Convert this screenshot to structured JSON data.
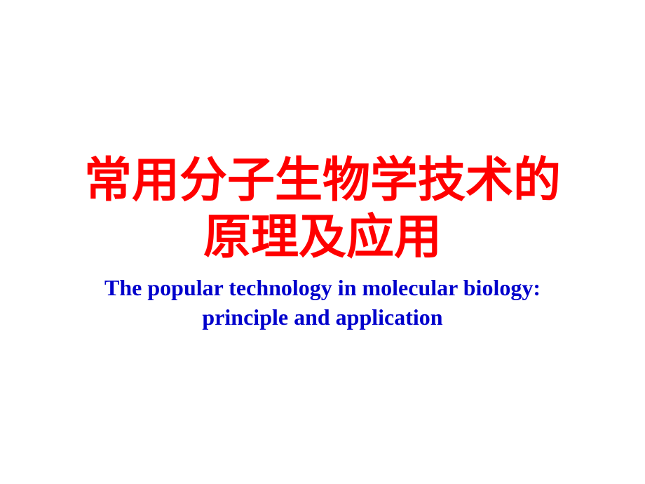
{
  "slide": {
    "title_chinese_line1": "常用分子生物学技术的",
    "title_chinese_line2": "原理及应用",
    "subtitle_english_line1": "The popular technology in molecular biology:",
    "subtitle_english_line2": "principle and application",
    "colors": {
      "title_color": "#ff0000",
      "subtitle_color": "#0000cc",
      "background_color": "#ffffff"
    },
    "typography": {
      "title_fontsize": 68,
      "subtitle_fontsize": 32,
      "title_font": "SimSun",
      "subtitle_font": "Times New Roman",
      "title_weight": "bold",
      "subtitle_weight": "bold"
    }
  }
}
